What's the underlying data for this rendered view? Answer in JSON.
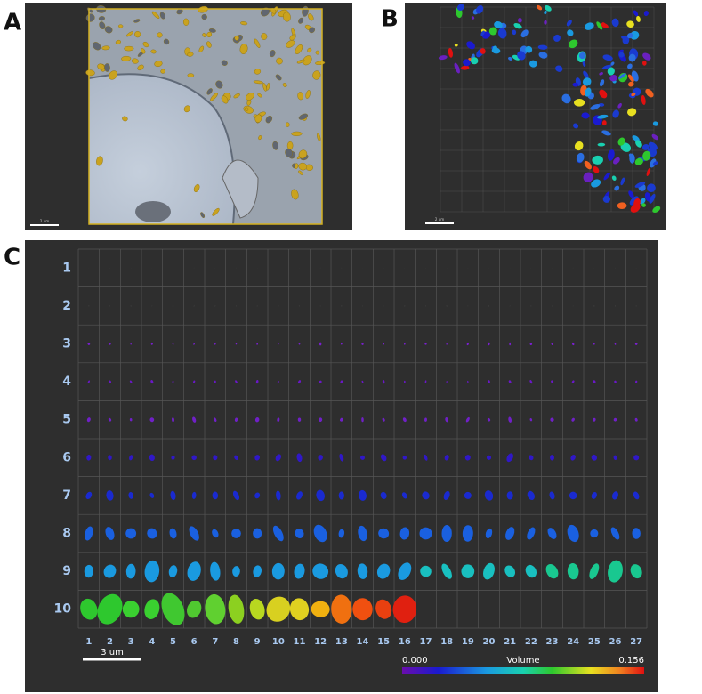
{
  "panels": [
    {
      "label": "A",
      "scale_bar": "2 um"
    },
    {
      "label": "B",
      "scale_bar": "2 um"
    },
    {
      "label": "C",
      "row_labels": [
        "1",
        "2",
        "3",
        "4",
        "5",
        "6",
        "7",
        "8",
        "9",
        "10"
      ],
      "column_labels": [
        "1",
        "2",
        "3",
        "4",
        "5",
        "6",
        "7",
        "8",
        "9",
        "10",
        "11",
        "12",
        "13",
        "14",
        "15",
        "16",
        "17",
        "18",
        "19",
        "20",
        "21",
        "22",
        "23",
        "24",
        "25",
        "26",
        "27"
      ],
      "scale_bar": "3 um",
      "colorbar": {
        "min": "0.000",
        "title": "Volume",
        "max": "0.156"
      }
    }
  ]
}
